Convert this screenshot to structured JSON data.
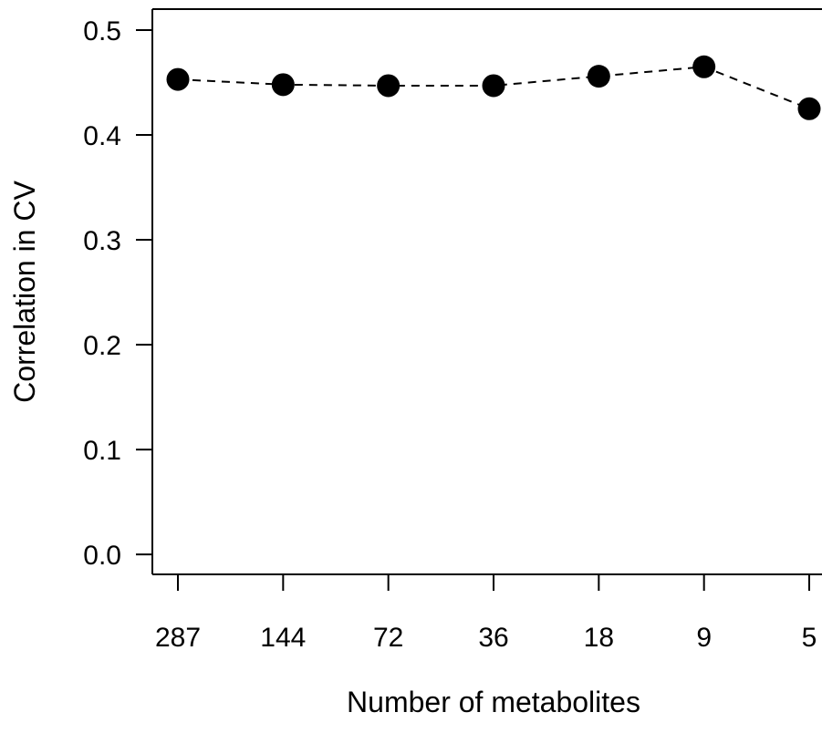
{
  "chart_data": {
    "type": "line",
    "title": "",
    "xlabel": "Number of metabolites",
    "ylabel": "Correlation in CV",
    "categories": [
      "287",
      "144",
      "72",
      "36",
      "18",
      "9",
      "5"
    ],
    "values": [
      0.453,
      0.448,
      0.447,
      0.447,
      0.456,
      0.465,
      0.425
    ],
    "ylim": [
      -0.019,
      0.52
    ],
    "y_ticks": [
      "0.0",
      "0.1",
      "0.2",
      "0.3",
      "0.4",
      "0.5"
    ],
    "y_tick_values": [
      0.0,
      0.1,
      0.2,
      0.3,
      0.4,
      0.5
    ],
    "line_style": "dashed",
    "marker": "filled-circle",
    "grid": false,
    "legend": "none",
    "colors": {
      "line": "#000000",
      "marker": "#000000",
      "axis": "#000000",
      "background": "#ffffff"
    }
  }
}
